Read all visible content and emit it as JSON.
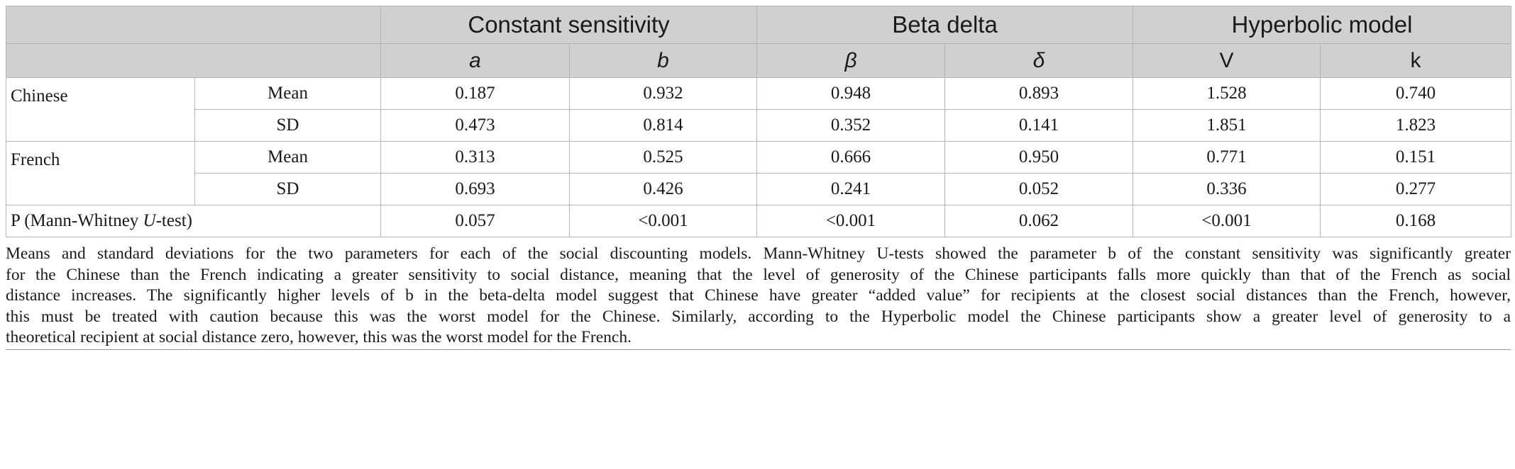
{
  "headers": {
    "groups": [
      "Constant sensitivity",
      "Beta delta",
      "Hyperbolic model"
    ],
    "params": [
      "a",
      "b",
      "β",
      "δ",
      "V",
      "k"
    ]
  },
  "rows": {
    "chinese": {
      "label": "Chinese",
      "mean": {
        "label": "Mean",
        "values": [
          "0.187",
          "0.932",
          "0.948",
          "0.893",
          "1.528",
          "0.740"
        ]
      },
      "sd": {
        "label": "SD",
        "values": [
          "0.473",
          "0.814",
          "0.352",
          "0.141",
          "1.851",
          "1.823"
        ]
      }
    },
    "french": {
      "label": "French",
      "mean": {
        "label": "Mean",
        "values": [
          "0.313",
          "0.525",
          "0.666",
          "0.950",
          "0.771",
          "0.151"
        ]
      },
      "sd": {
        "label": "SD",
        "values": [
          "0.693",
          "0.426",
          "0.241",
          "0.052",
          "0.336",
          "0.277"
        ]
      }
    },
    "p": {
      "label_prefix": "P (Mann-Whitney ",
      "label_italic": "U",
      "label_suffix": "-test)",
      "values": [
        "0.057",
        "<0.001",
        "<0.001",
        "0.062",
        "<0.001",
        "0.168"
      ]
    }
  },
  "caption": {
    "lines": [
      "Means and standard deviations for the two parameters for each of the social discounting models. Mann-Whitney U-tests showed the parameter b of the constant sensitivity was significantly greater",
      "for the Chinese than the French indicating a greater sensitivity to social distance, meaning that the level of generosity of the Chinese participants falls more quickly than that of the French as social",
      "distance increases. The significantly higher levels of b in the beta-delta model suggest that Chinese have greater “added value” for recipients at the closest social distances than the French, however,",
      "this must be treated with caution because this was the worst model for the Chinese. Similarly, according to the Hyperbolic model the Chinese participants show a greater level of generosity to a",
      "theoretical recipient at social distance zero, however, this was the worst model for the French."
    ]
  }
}
